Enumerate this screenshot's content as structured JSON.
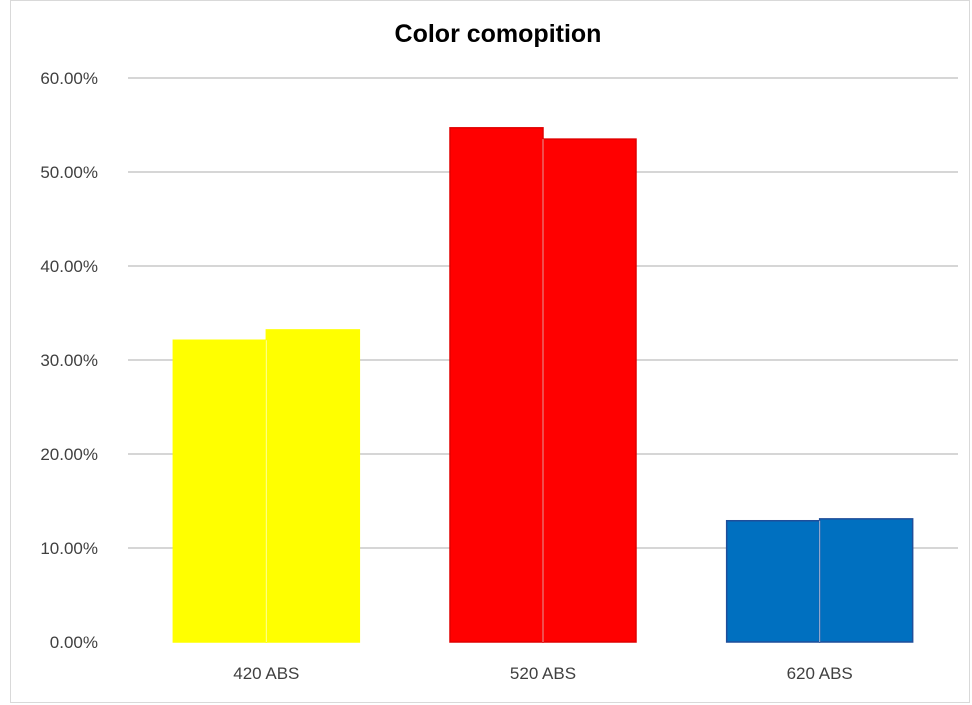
{
  "chart_data": {
    "type": "bar",
    "title": "Color comopition",
    "xlabel": "",
    "ylabel": "",
    "categories": [
      "420 ABS",
      "520 ABS",
      "620 ABS"
    ],
    "series": [
      {
        "values": [
          0.321,
          0.547,
          0.129
        ]
      },
      {
        "values": [
          0.332,
          0.535,
          0.131
        ]
      }
    ],
    "bar_colors": [
      "#ffff00",
      "#ff0000",
      "#0070c0"
    ],
    "bar_border_colors": [
      "#ffff00",
      "#e00000",
      "#1f4e9a"
    ],
    "ylim": [
      0,
      0.6
    ],
    "yticks": [
      0,
      0.1,
      0.2,
      0.3,
      0.4,
      0.5,
      0.6
    ],
    "ytick_labels": [
      "0.00%",
      "10.00%",
      "20.00%",
      "30.00%",
      "40.00%",
      "50.00%",
      "60.00%"
    ],
    "grid": true,
    "legend": "none"
  }
}
